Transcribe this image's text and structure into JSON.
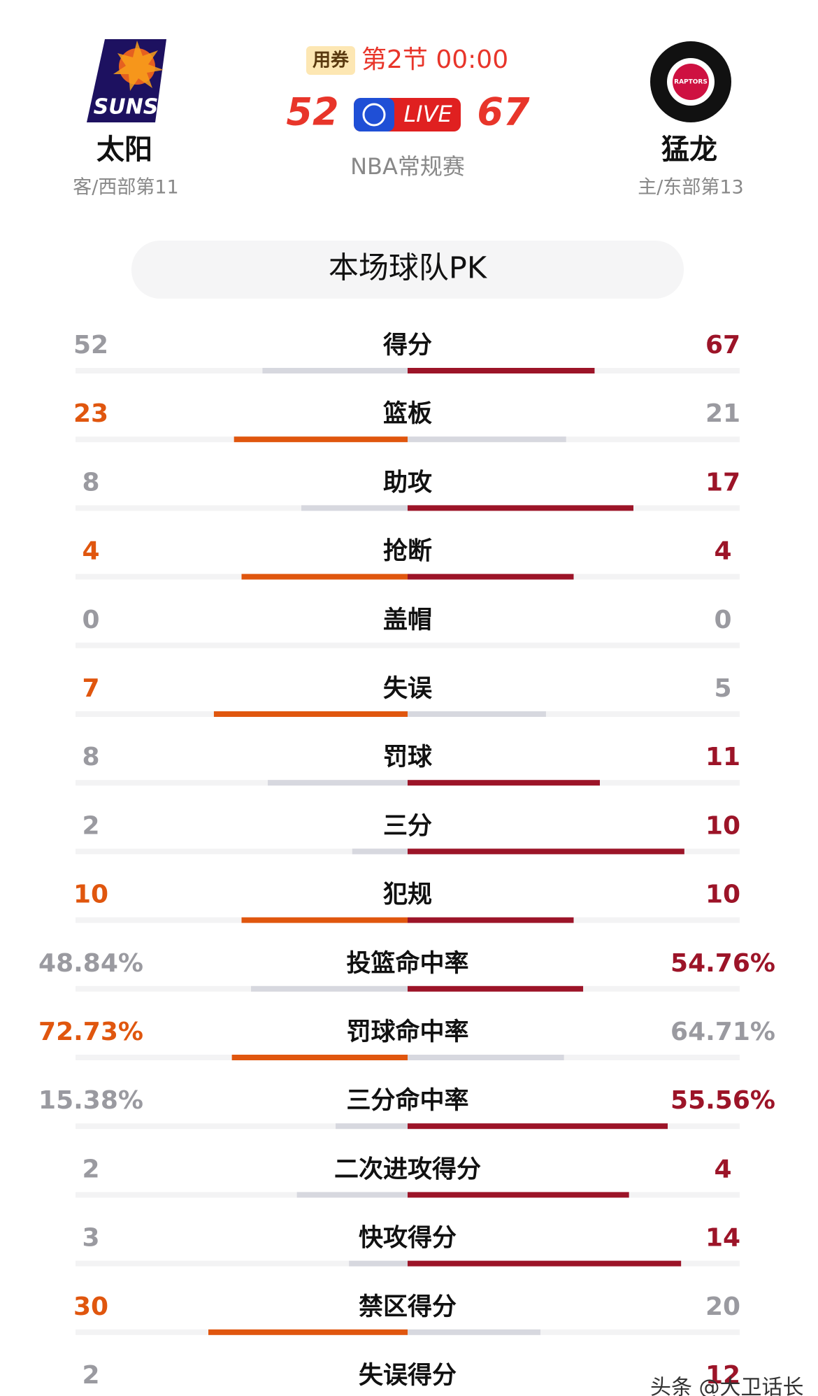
{
  "header": {
    "coupon": "用券",
    "period": "第2节 00:00",
    "live": "LIVE",
    "league": "NBA常规赛",
    "away": {
      "logo_text": "SUNS",
      "name": "太阳",
      "info": "客/西部第11",
      "score": 52
    },
    "home": {
      "logo_text": "RAPTORS",
      "name": "猛龙",
      "info": "主/东部第13",
      "score": 67
    }
  },
  "section_title": "本场球队PK",
  "stats": [
    {
      "label": "得分",
      "left": 52,
      "right": 67
    },
    {
      "label": "篮板",
      "left": 23,
      "right": 21
    },
    {
      "label": "助攻",
      "left": 8,
      "right": 17
    },
    {
      "label": "抢断",
      "left": 4,
      "right": 4
    },
    {
      "label": "盖帽",
      "left": 0,
      "right": 0
    },
    {
      "label": "失误",
      "left": 7,
      "right": 5
    },
    {
      "label": "罚球",
      "left": 8,
      "right": 11
    },
    {
      "label": "三分",
      "left": 2,
      "right": 10
    },
    {
      "label": "犯规",
      "left": 10,
      "right": 10
    },
    {
      "label": "投篮命中率",
      "left": "48.84%",
      "right": "54.76%"
    },
    {
      "label": "罚球命中率",
      "left": "72.73%",
      "right": "64.71%"
    },
    {
      "label": "三分命中率",
      "left": "15.38%",
      "right": "55.56%"
    },
    {
      "label": "二次进攻得分",
      "left": 2,
      "right": 4
    },
    {
      "label": "快攻得分",
      "left": 3,
      "right": 14
    },
    {
      "label": "禁区得分",
      "left": 30,
      "right": 20
    },
    {
      "label": "失误得分",
      "left": 2,
      "right": 12
    }
  ],
  "watermark": "头条 @大卫话长"
}
